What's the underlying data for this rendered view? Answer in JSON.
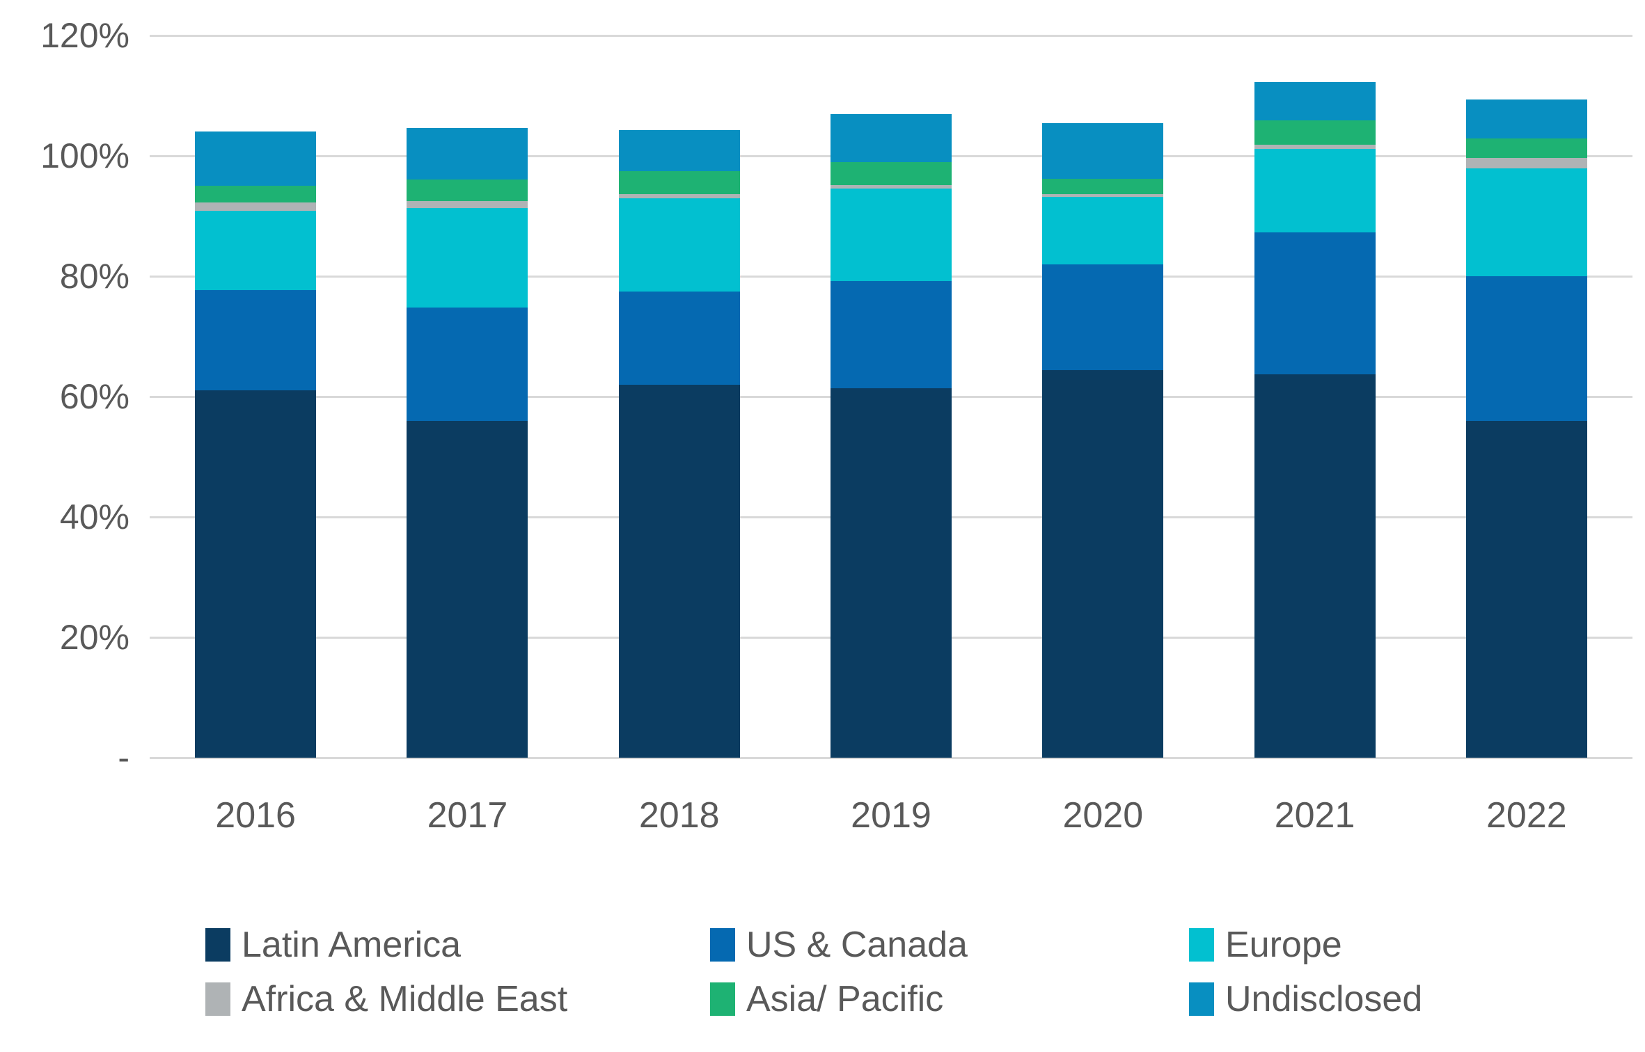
{
  "chart_data": {
    "type": "bar",
    "stacked": true,
    "title": "",
    "xlabel": "",
    "ylabel": "",
    "categories": [
      "2016",
      "2017",
      "2018",
      "2019",
      "2020",
      "2021",
      "2022"
    ],
    "series": [
      {
        "name": "Latin America",
        "color": "#0B3C61",
        "values": [
          61.0,
          56.0,
          62.0,
          61.4,
          64.4,
          63.7,
          56.0
        ]
      },
      {
        "name": "US & Canada",
        "color": "#0569B1",
        "values": [
          16.7,
          18.8,
          15.5,
          17.8,
          17.6,
          23.6,
          24.0
        ]
      },
      {
        "name": "Europe",
        "color": "#02C0D0",
        "values": [
          13.2,
          16.5,
          15.4,
          15.4,
          11.2,
          13.9,
          17.9
        ]
      },
      {
        "name": "Africa & Middle East",
        "color": "#AFB3B5",
        "values": [
          1.3,
          1.2,
          0.7,
          0.5,
          0.4,
          0.7,
          1.7
        ]
      },
      {
        "name": "Asia/ Pacific",
        "color": "#1EB273",
        "values": [
          2.8,
          3.6,
          3.8,
          3.9,
          2.6,
          4.0,
          3.3
        ]
      },
      {
        "name": "Undisclosed",
        "color": "#088FC1",
        "values": [
          9.1,
          8.5,
          6.9,
          7.9,
          9.2,
          6.4,
          6.5
        ]
      }
    ],
    "stack_totals": [
      104.1,
      104.6,
      104.3,
      106.9,
      105.4,
      112.3,
      109.4
    ],
    "y_axis": {
      "min": 0,
      "max": 120,
      "tick_step": 20,
      "tick_values": [
        0,
        20,
        40,
        60,
        80,
        100,
        120
      ],
      "tick_labels": [
        "-",
        "20%",
        "40%",
        "60%",
        "80%",
        "100%",
        "120%"
      ]
    },
    "grid": true,
    "legend_position": "bottom"
  },
  "styles": {
    "background": "#FFFFFF",
    "axis_text_color": "#595959",
    "gridline_color": "#D9D9D9"
  }
}
